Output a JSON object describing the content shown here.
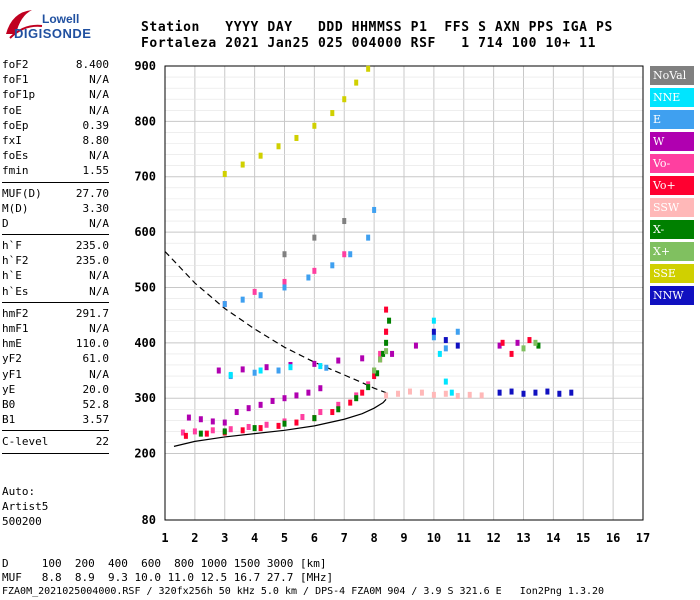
{
  "logo": {
    "line1": "Lowell",
    "line2": "DIGISONDE"
  },
  "header": {
    "row1": "Station   YYYY DAY   DDD HHMMSS P1  FFS S AXN PPS IGA PS",
    "row2": "Fortaleza 2021 Jan25 025 004000 RSF   1 714 100 10+ 11"
  },
  "params": [
    {
      "name": "foF2",
      "value": "8.400"
    },
    {
      "name": "foF1",
      "value": "N/A"
    },
    {
      "name": "foF1p",
      "value": "N/A"
    },
    {
      "name": "foE",
      "value": "N/A"
    },
    {
      "name": "foEp",
      "value": "0.39"
    },
    {
      "name": "fxI",
      "value": "8.80"
    },
    {
      "name": "foEs",
      "value": "N/A"
    },
    {
      "name": "fmin",
      "value": "1.55"
    },
    {
      "sep": true
    },
    {
      "name": "MUF(D)",
      "value": "27.70"
    },
    {
      "name": "M(D)",
      "value": "3.30"
    },
    {
      "name": "D",
      "value": "N/A"
    },
    {
      "sep": true
    },
    {
      "name": "h`F",
      "value": "235.0"
    },
    {
      "name": "h`F2",
      "value": "235.0"
    },
    {
      "name": "h`E",
      "value": "N/A"
    },
    {
      "name": "h`Es",
      "value": "N/A"
    },
    {
      "sep": true
    },
    {
      "name": "hmF2",
      "value": "291.7"
    },
    {
      "name": "hmF1",
      "value": "N/A"
    },
    {
      "name": "hmE",
      "value": "110.0"
    },
    {
      "name": "yF2",
      "value": "61.0"
    },
    {
      "name": "yF1",
      "value": "N/A"
    },
    {
      "name": "yE",
      "value": "20.0"
    },
    {
      "name": "B0",
      "value": "52.8"
    },
    {
      "name": "B1",
      "value": "3.57"
    },
    {
      "sep": true
    },
    {
      "name": "C-level",
      "value": "22"
    },
    {
      "sep": true
    }
  ],
  "auto": [
    "Auto:",
    "Artist5",
    "500200"
  ],
  "legend": [
    {
      "label": "NoVal",
      "color": "#808080",
      "text": "#ffffff"
    },
    {
      "label": "NNE",
      "color": "#00e5ff",
      "text": "#ffffff"
    },
    {
      "label": "E",
      "color": "#3fa0f0",
      "text": "#ffffff"
    },
    {
      "label": "W",
      "color": "#b000b0",
      "text": "#ffffff"
    },
    {
      "label": "Vo-",
      "color": "#ff3fa0",
      "text": "#ffffff"
    },
    {
      "label": "Vo+",
      "color": "#ff0030",
      "text": "#ffffff"
    },
    {
      "label": "SSW",
      "color": "#ffb8b8",
      "text": "#ffffff"
    },
    {
      "label": "X-",
      "color": "#008000",
      "text": "#ffffff"
    },
    {
      "label": "X+",
      "color": "#80c060",
      "text": "#ffffff"
    },
    {
      "label": "SSE",
      "color": "#d0d000",
      "text": "#ffffff"
    },
    {
      "label": "NNW",
      "color": "#1010c0",
      "text": "#ffffff"
    }
  ],
  "footer": {
    "line1": "D     100  200  400  600  800 1000 1500 3000 [km]",
    "line2": "MUF   8.8  8.9  9.3 10.0 11.0 12.5 16.7 27.7 [MHz]",
    "line3": "FZA0M_2021025004000.RSF / 320fx256h 50 kHz 5.0 km / DPS-4 FZA0M 904 / 3.9 S 321.6 E   Ion2Png 1.3.20"
  },
  "chart_data": {
    "type": "scatter",
    "title": "",
    "xlabel": "",
    "ylabel": "",
    "xlim": [
      1,
      17
    ],
    "ylim": [
      80,
      900
    ],
    "xticks": [
      1,
      2,
      3,
      4,
      5,
      6,
      7,
      8,
      9,
      10,
      11,
      12,
      13,
      14,
      15,
      16,
      17
    ],
    "yticks": [
      80,
      200,
      300,
      400,
      500,
      600,
      700,
      800,
      900
    ],
    "grid": true,
    "series": [
      {
        "name": "W",
        "color": "#b000b0",
        "points": [
          [
            1.8,
            265
          ],
          [
            2.2,
            262
          ],
          [
            2.6,
            258
          ],
          [
            3.0,
            256
          ],
          [
            3.4,
            275
          ],
          [
            3.8,
            282
          ],
          [
            4.2,
            288
          ],
          [
            4.6,
            295
          ],
          [
            5.0,
            300
          ],
          [
            5.4,
            305
          ],
          [
            5.8,
            310
          ],
          [
            6.2,
            318
          ],
          [
            2.8,
            350
          ],
          [
            3.6,
            352
          ],
          [
            4.4,
            356
          ],
          [
            5.2,
            360
          ],
          [
            6.0,
            362
          ],
          [
            6.8,
            368
          ],
          [
            7.6,
            372
          ],
          [
            8.6,
            380
          ],
          [
            9.4,
            395
          ],
          [
            12.2,
            395
          ],
          [
            12.8,
            400
          ]
        ]
      },
      {
        "name": "Vo-",
        "color": "#ff3fa0",
        "points": [
          [
            1.6,
            238
          ],
          [
            2.0,
            240
          ],
          [
            2.6,
            242
          ],
          [
            3.2,
            244
          ],
          [
            3.8,
            248
          ],
          [
            4.4,
            252
          ],
          [
            5.0,
            258
          ],
          [
            5.6,
            266
          ],
          [
            6.2,
            275
          ],
          [
            6.8,
            288
          ],
          [
            7.4,
            305
          ],
          [
            7.8,
            325
          ],
          [
            8.0,
            350
          ],
          [
            8.2,
            380
          ],
          [
            3.0,
            470
          ],
          [
            4.0,
            492
          ],
          [
            5.0,
            510
          ],
          [
            6.0,
            530
          ],
          [
            7.0,
            560
          ],
          [
            8.4,
            420
          ]
        ]
      },
      {
        "name": "Vo+",
        "color": "#ff0030",
        "points": [
          [
            1.7,
            232
          ],
          [
            2.4,
            236
          ],
          [
            3.0,
            238
          ],
          [
            3.6,
            242
          ],
          [
            4.2,
            246
          ],
          [
            4.8,
            250
          ],
          [
            5.4,
            256
          ],
          [
            6.0,
            264
          ],
          [
            6.6,
            275
          ],
          [
            7.2,
            292
          ],
          [
            7.6,
            310
          ],
          [
            8.0,
            340
          ],
          [
            8.2,
            370
          ],
          [
            8.4,
            420
          ],
          [
            8.4,
            460
          ],
          [
            12.3,
            400
          ],
          [
            12.6,
            380
          ],
          [
            13.2,
            405
          ]
        ]
      },
      {
        "name": "X-",
        "color": "#008000",
        "points": [
          [
            2.2,
            236
          ],
          [
            3.0,
            240
          ],
          [
            4.0,
            246
          ],
          [
            5.0,
            254
          ],
          [
            6.0,
            264
          ],
          [
            6.8,
            280
          ],
          [
            7.4,
            300
          ],
          [
            7.8,
            320
          ],
          [
            8.1,
            345
          ],
          [
            8.3,
            380
          ],
          [
            8.4,
            400
          ],
          [
            8.5,
            440
          ],
          [
            13.5,
            395
          ]
        ]
      },
      {
        "name": "X+",
        "color": "#80c060",
        "points": [
          [
            8.0,
            350
          ],
          [
            8.2,
            370
          ],
          [
            8.4,
            385
          ],
          [
            13.0,
            390
          ],
          [
            13.4,
            400
          ]
        ]
      },
      {
        "name": "E",
        "color": "#3fa0f0",
        "points": [
          [
            3.0,
            470
          ],
          [
            3.6,
            478
          ],
          [
            4.2,
            486
          ],
          [
            5.0,
            500
          ],
          [
            5.8,
            518
          ],
          [
            6.6,
            540
          ],
          [
            7.2,
            560
          ],
          [
            7.8,
            590
          ],
          [
            8.0,
            640
          ],
          [
            3.2,
            340
          ],
          [
            4.0,
            346
          ],
          [
            4.8,
            350
          ],
          [
            6.4,
            355
          ],
          [
            10.0,
            410
          ],
          [
            10.4,
            390
          ],
          [
            10.8,
            420
          ]
        ]
      },
      {
        "name": "NNE",
        "color": "#00e5ff",
        "points": [
          [
            3.2,
            342
          ],
          [
            4.2,
            350
          ],
          [
            5.2,
            356
          ],
          [
            6.2,
            358
          ],
          [
            10.2,
            380
          ],
          [
            10.4,
            330
          ],
          [
            10.6,
            310
          ],
          [
            10.0,
            440
          ]
        ]
      },
      {
        "name": "SSW",
        "color": "#ffb8b8",
        "points": [
          [
            8.4,
            305
          ],
          [
            8.8,
            308
          ],
          [
            9.2,
            312
          ],
          [
            9.6,
            310
          ],
          [
            10.0,
            306
          ],
          [
            10.4,
            308
          ],
          [
            10.8,
            304
          ],
          [
            11.2,
            306
          ],
          [
            11.6,
            305
          ]
        ]
      },
      {
        "name": "SSE",
        "color": "#d0d000",
        "points": [
          [
            3.0,
            705
          ],
          [
            3.6,
            722
          ],
          [
            4.2,
            738
          ],
          [
            4.8,
            755
          ],
          [
            5.4,
            770
          ],
          [
            6.0,
            792
          ],
          [
            6.6,
            815
          ],
          [
            7.0,
            840
          ],
          [
            7.4,
            870
          ],
          [
            7.8,
            895
          ]
        ]
      },
      {
        "name": "NNW",
        "color": "#1010c0",
        "points": [
          [
            10.0,
            420
          ],
          [
            10.4,
            405
          ],
          [
            10.8,
            395
          ],
          [
            12.2,
            310
          ],
          [
            12.6,
            312
          ],
          [
            13.0,
            308
          ],
          [
            13.4,
            310
          ],
          [
            13.8,
            312
          ],
          [
            14.2,
            308
          ],
          [
            14.6,
            310
          ]
        ]
      },
      {
        "name": "NoVal",
        "color": "#808080",
        "points": [
          [
            5.0,
            560
          ],
          [
            6.0,
            590
          ],
          [
            7.0,
            620
          ]
        ]
      }
    ],
    "curves": [
      {
        "style": "solid",
        "color": "#000000",
        "points": [
          [
            1.3,
            213
          ],
          [
            2.0,
            222
          ],
          [
            3.0,
            230
          ],
          [
            4.0,
            236
          ],
          [
            5.0,
            242
          ],
          [
            6.0,
            250
          ],
          [
            7.0,
            262
          ],
          [
            7.6,
            272
          ],
          [
            8.0,
            282
          ],
          [
            8.3,
            292
          ],
          [
            8.4,
            298
          ]
        ]
      },
      {
        "style": "dashed",
        "color": "#000000",
        "points": [
          [
            1.0,
            565
          ],
          [
            2.0,
            508
          ],
          [
            3.0,
            462
          ],
          [
            4.0,
            425
          ],
          [
            5.0,
            392
          ],
          [
            6.0,
            365
          ],
          [
            7.0,
            342
          ],
          [
            7.6,
            328
          ],
          [
            8.0,
            318
          ],
          [
            8.4,
            310
          ]
        ]
      }
    ]
  }
}
